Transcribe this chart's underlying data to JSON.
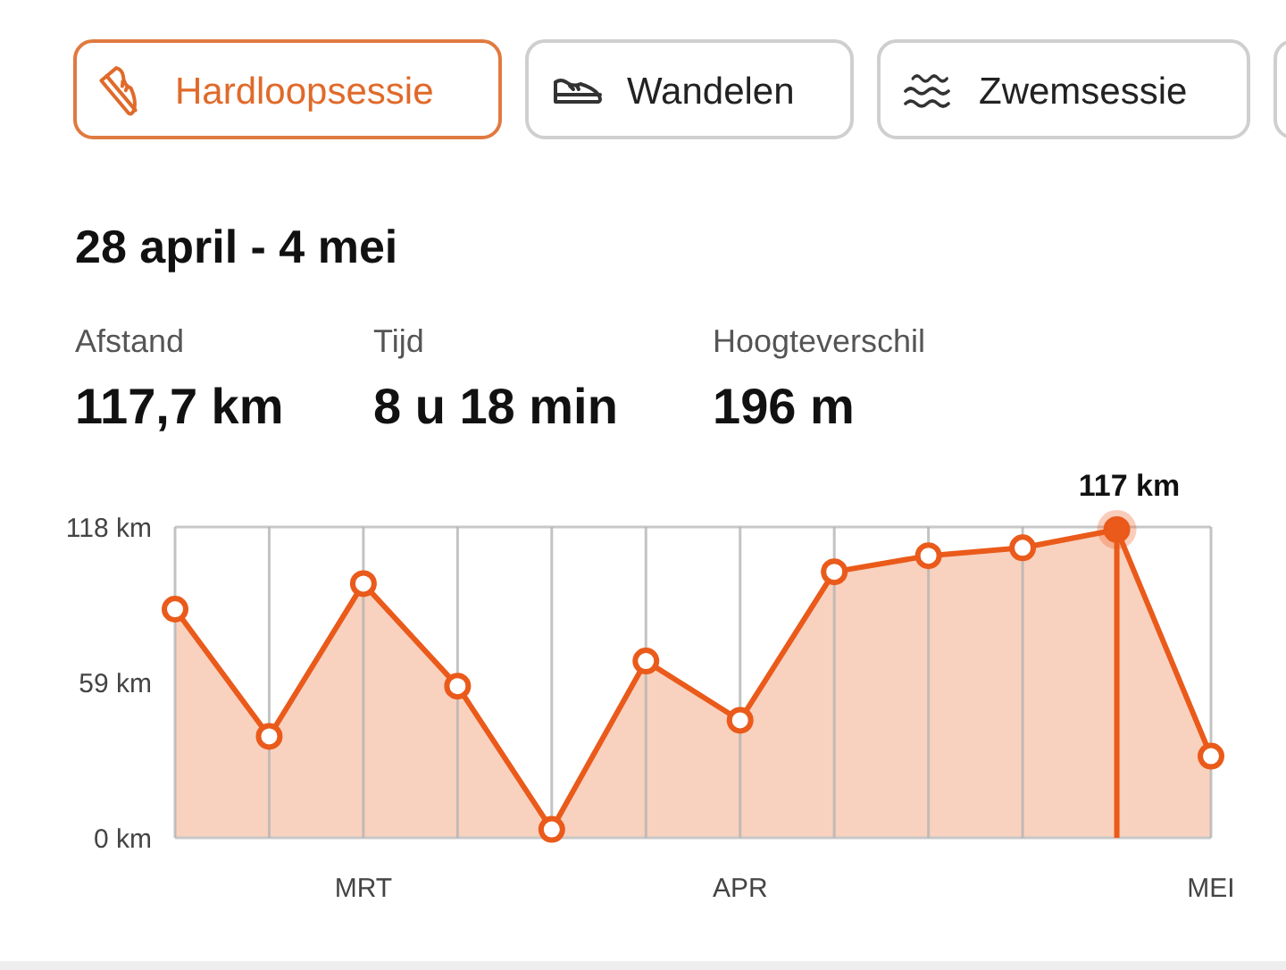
{
  "chart_data": {
    "type": "area",
    "title": "28 april - 4 mei",
    "annotations": [
      "Hardloopsessie",
      "Wandelen",
      "Zwemsessie",
      "Afstand",
      "117,7 km",
      "Tijd",
      "8 u 18 min",
      "Hoogteverschil",
      "196 m",
      {
        "text": "117 km",
        "y": 117
      }
    ],
    "categories": [
      null,
      null,
      "MRT",
      null,
      null,
      null,
      "APR",
      null,
      null,
      null,
      null,
      "MEI"
    ],
    "values": [
      86.8,
      38.5,
      96.5,
      57.6,
      3.2,
      67.1,
      44.6,
      101,
      107.1,
      110.1,
      117,
      31
    ],
    "color": "#ea5a1a",
    "ylim": [
      0,
      118
    ],
    "yticks": [
      {
        "value": 0,
        "label": "0 km"
      },
      {
        "value": 59,
        "label": "59 km"
      },
      {
        "value": 118,
        "label": "118 km"
      }
    ],
    "grid": "x",
    "marker": "circle"
  }
}
